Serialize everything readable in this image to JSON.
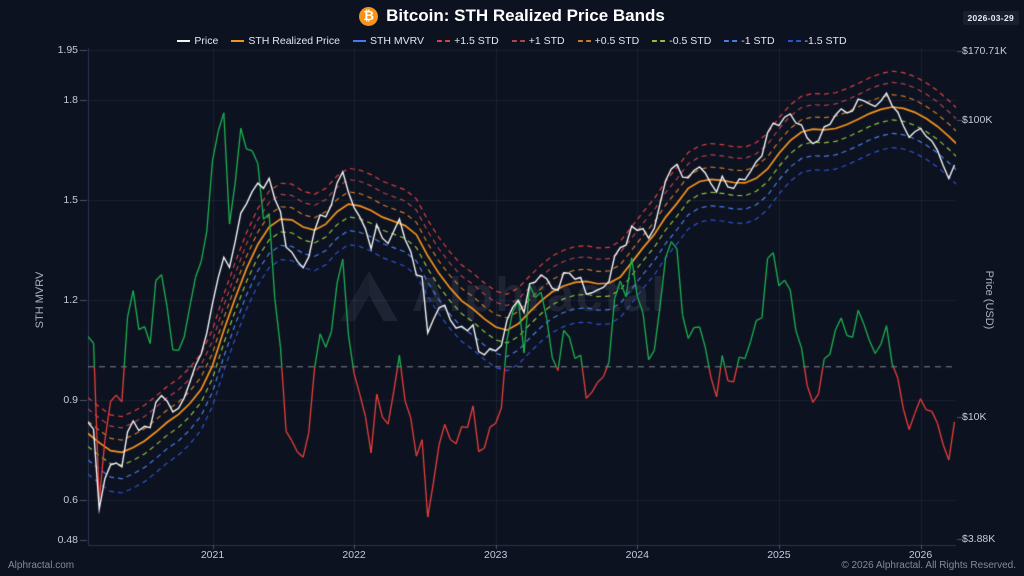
{
  "header": {
    "title": "Bitcoin: STH Realized Price Bands",
    "bitcoin_icon": "₿",
    "date_badge": "2026-03-29"
  },
  "watermark": {
    "text": "Alphractal"
  },
  "footer": {
    "left": "Alphractal.com",
    "right": "© 2026 Alphractal. All Rights Reserved."
  },
  "legend": [
    {
      "label": "Price",
      "color": "#f2f4f6",
      "dashed": false
    },
    {
      "label": "STH Realized Price",
      "color": "#f5941d",
      "dashed": false
    },
    {
      "label": "STH MVRV",
      "color": "#4878f0",
      "dashed": false
    },
    {
      "label": "+1.5 STD",
      "color": "#de413d",
      "dashed": true
    },
    {
      "label": "+1 STD",
      "color": "#b2434e",
      "dashed": true
    },
    {
      "label": "+0.5 STD",
      "color": "#cc7a26",
      "dashed": true
    },
    {
      "label": "-0.5 STD",
      "color": "#93c13f",
      "dashed": true
    },
    {
      "label": "-1 STD",
      "color": "#4a7de8",
      "dashed": true
    },
    {
      "label": "-1.5 STD",
      "color": "#2d53cf",
      "dashed": true
    }
  ],
  "axes": {
    "left": {
      "title": "STH MVRV",
      "ticks": [
        {
          "label": "1.95",
          "value": 1.95
        },
        {
          "label": "1.8",
          "value": 1.8
        },
        {
          "label": "1.5",
          "value": 1.5
        },
        {
          "label": "1.2",
          "value": 1.2
        },
        {
          "label": "0.9",
          "value": 0.9
        },
        {
          "label": "0.6",
          "value": 0.6
        },
        {
          "label": "0.48",
          "value": 0.48
        }
      ]
    },
    "right": {
      "title": "Price (USD)",
      "ticks": [
        {
          "label": "$170.71K",
          "value": 170710
        },
        {
          "label": "$100K",
          "value": 100000
        },
        {
          "label": "$10K",
          "value": 10000
        },
        {
          "label": "$3.88K",
          "value": 3880
        }
      ]
    },
    "x": {
      "ticks": [
        {
          "label": "2021",
          "value": 2021
        },
        {
          "label": "2022",
          "value": 2022
        },
        {
          "label": "2023",
          "value": 2023
        },
        {
          "label": "2024",
          "value": 2024
        },
        {
          "label": "2025",
          "value": 2025
        },
        {
          "label": "2026",
          "value": 2026
        }
      ]
    }
  },
  "chart_data": {
    "type": "line",
    "title": "Bitcoin: STH Realized Price Bands",
    "x_unit": "decimal_year",
    "x_range": [
      2020.12,
      2026.28
    ],
    "left_axis": {
      "label": "STH MVRV",
      "scale": "linear",
      "range": [
        0.48,
        1.95
      ]
    },
    "right_axis": {
      "label": "Price (USD)",
      "scale": "log",
      "range_usd": [
        3880,
        170710
      ]
    },
    "grid": true,
    "legend_position": "top-center",
    "reference_line": {
      "axis": "left",
      "value": 1.0,
      "style": "dashed",
      "color": "#c9cfdd"
    },
    "mvrv_note": "STH MVRV = Price / STH Realized Price; plotted on left axis, green above 1.0 and red below 1.0",
    "series_colors": {
      "price": "#f2f4f6",
      "sth_realized_price": "#f5941d",
      "mvrv_above_1": "#1cb250",
      "mvrv_below_1": "#e8403a",
      "grid": "#28334d"
    },
    "price_usd_thousands": {
      "t0": 2020.12,
      "dt": 0.04,
      "values": [
        9.6,
        9.1,
        4.9,
        6.2,
        6.9,
        7.0,
        6.8,
        8.9,
        9.7,
        9.0,
        9.3,
        9.2,
        11.2,
        11.8,
        11.3,
        10.4,
        10.7,
        11.6,
        13.1,
        14.9,
        16.3,
        19.2,
        24.1,
        29.4,
        34.5,
        31.9,
        38.9,
        48.6,
        52.2,
        57.4,
        61.3,
        58.9,
        63.6,
        54.2,
        49.1,
        37.3,
        35.9,
        33.4,
        31.8,
        34.6,
        42.3,
        47.9,
        47.2,
        51.8,
        61.4,
        66.9,
        57.1,
        50.7,
        47.2,
        43.0,
        36.8,
        44.4,
        40.0,
        38.4,
        42.2,
        46.4,
        39.6,
        36.1,
        30.1,
        29.7,
        19.2,
        21.3,
        23.3,
        23.8,
        21.2,
        19.9,
        20.2,
        19.5,
        20.4,
        16.6,
        16.2,
        17.0,
        16.7,
        17.4,
        21.2,
        23.4,
        24.7,
        22.5,
        28.1,
        28.5,
        30.1,
        29.2,
        27.1,
        26.7,
        30.6,
        30.5,
        29.1,
        29.5,
        25.9,
        26.2,
        26.8,
        27.3,
        28.6,
        34.8,
        37.2,
        37.9,
        43.9,
        42.5,
        43.1,
        40.0,
        43.2,
        52.1,
        62.5,
        68.4,
        70.9,
        64.2,
        63.9,
        67.6,
        69.5,
        66.3,
        61.1,
        57.2,
        64.7,
        59.5,
        58.8,
        63.3,
        62.9,
        67.2,
        72.4,
        75.7,
        90.6,
        97.6,
        95.8,
        102.2,
        104.8,
        97.7,
        96.2,
        86.9,
        83.2,
        85.3,
        94.8,
        96.6,
        104.0,
        109.0,
        105.7,
        107.3,
        117.6,
        116.0,
        113.3,
        111.1,
        115.9,
        123.1,
        111.6,
        106.2,
        95.4,
        87.5,
        91.3,
        93.7,
        88.1,
        85.0,
        79.0,
        70.3,
        63.5,
        70.6
      ]
    },
    "sth_realized_price_usd_thousands": {
      "t0": 2020.12,
      "dt": 0.08,
      "values": [
        8.8,
        8.2,
        7.7,
        7.6,
        7.9,
        8.3,
        8.9,
        9.6,
        10.2,
        11.1,
        12.4,
        14.9,
        19.6,
        25.1,
        31.6,
        38.1,
        43.6,
        46.4,
        46.1,
        43.6,
        42.6,
        44.6,
        49.1,
        52.1,
        51.4,
        49.6,
        47.1,
        45.6,
        44.1,
        41.1,
        34.9,
        30.4,
        27.1,
        24.6,
        23.1,
        21.4,
        20.1,
        19.6,
        20.6,
        22.6,
        24.6,
        26.4,
        27.6,
        28.4,
        28.6,
        28.1,
        28.2,
        29.6,
        33.1,
        37.1,
        41.2,
        47.1,
        52.4,
        58.9,
        62.1,
        63.1,
        62.6,
        61.6,
        61.4,
        63.6,
        68.4,
        77.1,
        85.2,
        91.1,
        93.1,
        92.6,
        93.6,
        96.6,
        100.6,
        105.1,
        108.6,
        110.6,
        109.4,
        106.1,
        101.1,
        95.1,
        88.1,
        81.0
      ]
    },
    "bands": [
      {
        "label": "+1.5 STD",
        "multiplier": 1.32,
        "color": "#de413d"
      },
      {
        "label": "+1 STD",
        "multiplier": 1.21,
        "color": "#b2434e"
      },
      {
        "label": "+0.5 STD",
        "multiplier": 1.1,
        "color": "#cc7a26"
      },
      {
        "label": "-0.5 STD",
        "multiplier": 0.905,
        "color": "#93c13f"
      },
      {
        "label": "-1 STD",
        "multiplier": 0.815,
        "color": "#4a7de8"
      },
      {
        "label": "-1.5 STD",
        "multiplier": 0.73,
        "color": "#2d53cf"
      }
    ]
  }
}
